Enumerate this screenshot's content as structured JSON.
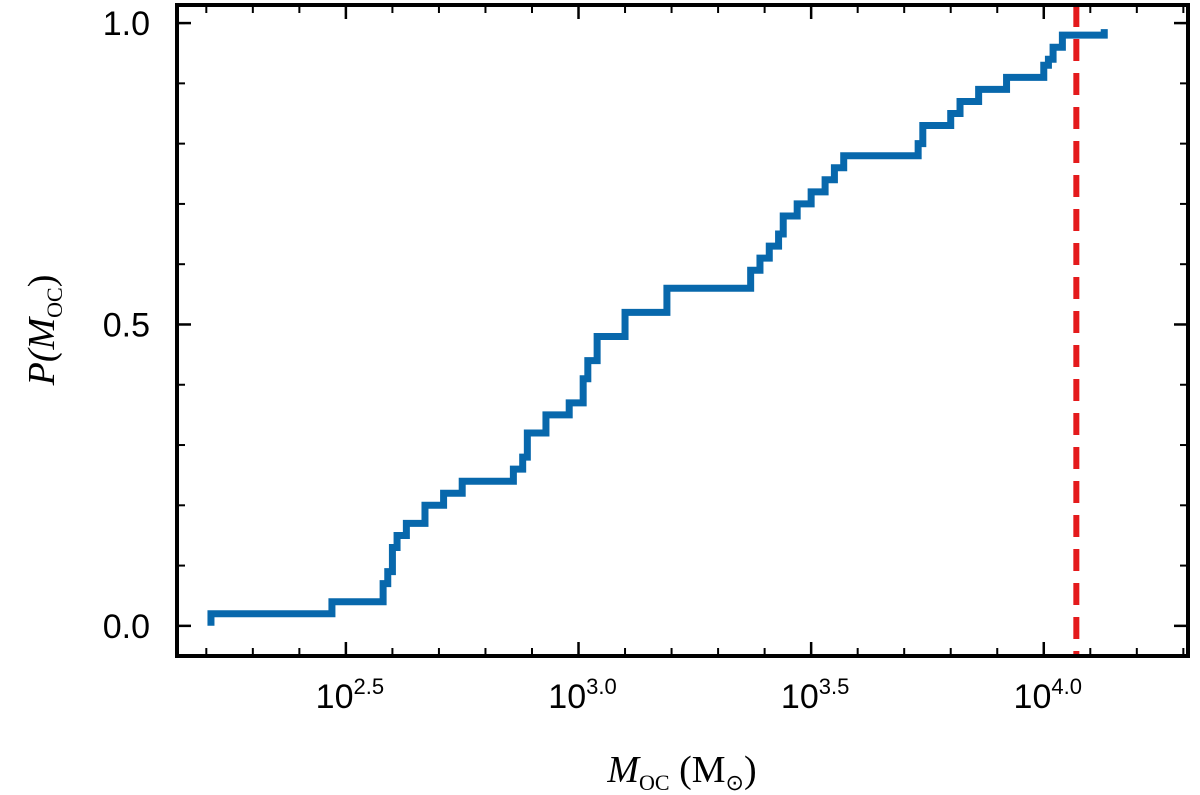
{
  "chart_data": {
    "type": "line",
    "step": true,
    "xscale": "log10",
    "xlim_log10": [
      2.137,
      4.31
    ],
    "ylim": [
      -0.05,
      1.03
    ],
    "grid": false,
    "xlabel": {
      "main": "M",
      "sub": "OC",
      "unit": "(M",
      "unit_sub": "⊙",
      "close": ")"
    },
    "ylabel": {
      "main": "P(M",
      "sub": "OC",
      "close": ")"
    },
    "x_ticks": [
      {
        "base": "10",
        "exp": "2.5"
      },
      {
        "base": "10",
        "exp": "3.0"
      },
      {
        "base": "10",
        "exp": "3.5"
      },
      {
        "base": "10",
        "exp": "4.0"
      }
    ],
    "x_tick_values_log10": [
      2.5,
      3.0,
      3.5,
      4.0
    ],
    "y_ticks": [
      "0.0",
      "0.5",
      "1.0"
    ],
    "y_tick_values": [
      0.0,
      0.5,
      1.0
    ],
    "series": [
      {
        "color": "#0868ac",
        "log10_x": [
          2.21,
          2.47,
          2.58,
          2.59,
          2.6,
          2.61,
          2.63,
          2.67,
          2.71,
          2.75,
          2.86,
          2.88,
          2.89,
          2.93,
          2.98,
          3.01,
          3.02,
          3.04,
          3.1,
          3.19,
          3.37,
          3.39,
          3.41,
          3.43,
          3.44,
          3.47,
          3.5,
          3.53,
          3.55,
          3.57,
          3.73,
          3.74,
          3.8,
          3.82,
          3.86,
          3.92,
          4.0,
          4.01,
          4.02,
          4.04,
          4.13
        ],
        "y": [
          0.02,
          0.04,
          0.07,
          0.09,
          0.13,
          0.15,
          0.17,
          0.2,
          0.22,
          0.24,
          0.26,
          0.28,
          0.32,
          0.35,
          0.37,
          0.41,
          0.44,
          0.48,
          0.52,
          0.56,
          0.59,
          0.61,
          0.63,
          0.65,
          0.68,
          0.7,
          0.72,
          0.74,
          0.76,
          0.78,
          0.8,
          0.83,
          0.85,
          0.87,
          0.89,
          0.91,
          0.93,
          0.94,
          0.96,
          0.98,
          0.99
        ]
      }
    ],
    "vline": {
      "log10_x": 4.07,
      "color": "#e41a1c",
      "style": "dashed"
    }
  }
}
